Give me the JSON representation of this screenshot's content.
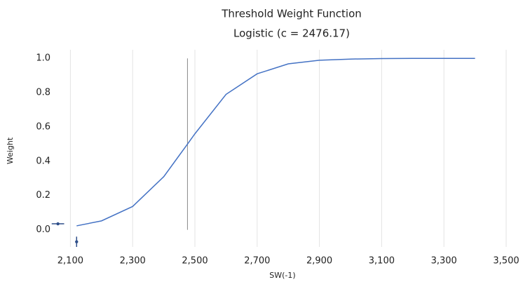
{
  "chart_data": {
    "type": "line",
    "title": "Threshold Weight Function",
    "subtitle": "Logistic (c = 2476.17)",
    "x_label": "SW(-1)",
    "y_label": "Weight",
    "series": [
      {
        "name": "Logistic",
        "color": "#4472c4",
        "x": [
          2120,
          2200,
          2300,
          2400,
          2476.17,
          2500,
          2600,
          2700,
          2800,
          2900,
          3000,
          3100,
          3200,
          3300,
          3400
        ],
        "values": [
          0.023,
          0.052,
          0.136,
          0.31,
          0.5,
          0.56,
          0.79,
          0.91,
          0.968,
          0.989,
          0.996,
          0.999,
          1.0,
          1.0,
          1.0
        ]
      }
    ],
    "threshold": 2476.17,
    "points": [
      {
        "x": 2060,
        "y": 0.035,
        "xerr": 20
      },
      {
        "x": 2120,
        "y": -0.07,
        "yerr": 0.03
      }
    ],
    "xlim": [
      2000,
      3500
    ],
    "ylim": [
      -0.1,
      1.05
    ],
    "xticks": [
      {
        "value": 2100,
        "label": "2,100"
      },
      {
        "value": 2300,
        "label": "2,300"
      },
      {
        "value": 2500,
        "label": "2,500"
      },
      {
        "value": 2700,
        "label": "2,700"
      },
      {
        "value": 2900,
        "label": "2,900"
      },
      {
        "value": 3100,
        "label": "3,100"
      },
      {
        "value": 3300,
        "label": "3,300"
      },
      {
        "value": 3500,
        "label": "3,500"
      }
    ],
    "yticks": [
      {
        "value": 0,
        "label": "0.0"
      },
      {
        "value": 0.2,
        "label": "0.2"
      },
      {
        "value": 0.4,
        "label": "0.4"
      },
      {
        "value": 0.6,
        "label": "0.6"
      },
      {
        "value": 0.8,
        "label": "0.8"
      },
      {
        "value": 1,
        "label": "1.0"
      }
    ],
    "grid": "x"
  }
}
